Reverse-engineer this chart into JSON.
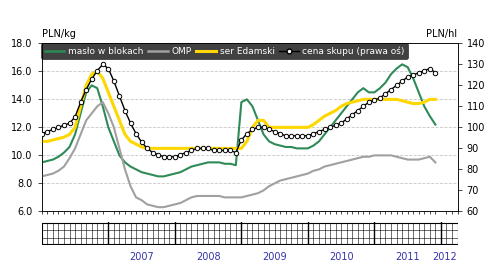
{
  "title_left": "PLN/kg",
  "title_right": "PLN/hl",
  "ylim_left": [
    6.0,
    18.0
  ],
  "ylim_right": [
    60,
    140
  ],
  "yticks_left": [
    6.0,
    8.0,
    10.0,
    12.0,
    14.0,
    16.0,
    18.0
  ],
  "yticks_right": [
    60,
    70,
    80,
    90,
    100,
    110,
    120,
    130,
    140
  ],
  "legend": [
    "masło w blokach",
    "OMP",
    "ser Edamski",
    "cena skupu (prawa oś)"
  ],
  "colors": [
    "#2e8b57",
    "#a0a0a0",
    "#ffd700",
    "#000000"
  ],
  "background_color": "#ffffff",
  "grid_color": "#c8c8c8",
  "maslo": [
    9.5,
    9.6,
    9.7,
    9.9,
    10.2,
    10.6,
    11.5,
    13.0,
    14.5,
    15.0,
    14.8,
    13.5,
    12.0,
    11.0,
    10.0,
    9.5,
    9.2,
    9.0,
    8.8,
    8.7,
    8.6,
    8.5,
    8.5,
    8.6,
    8.7,
    8.8,
    9.0,
    9.2,
    9.3,
    9.4,
    9.5,
    9.5,
    9.5,
    9.4,
    9.4,
    9.3,
    13.8,
    14.0,
    13.5,
    12.5,
    11.5,
    11.0,
    10.8,
    10.7,
    10.6,
    10.6,
    10.5,
    10.5,
    10.5,
    10.7,
    11.0,
    11.5,
    12.0,
    12.5,
    13.0,
    13.5,
    14.0,
    14.5,
    14.8,
    14.5,
    14.5,
    14.8,
    15.2,
    15.8,
    16.2,
    16.5,
    16.3,
    15.5,
    14.5,
    13.5,
    12.8,
    12.2
  ],
  "omp": [
    8.5,
    8.6,
    8.7,
    8.9,
    9.2,
    9.8,
    10.5,
    11.5,
    12.5,
    13.0,
    13.5,
    13.8,
    13.0,
    12.0,
    10.5,
    9.0,
    7.8,
    7.0,
    6.8,
    6.5,
    6.4,
    6.3,
    6.3,
    6.4,
    6.5,
    6.6,
    6.8,
    7.0,
    7.1,
    7.1,
    7.1,
    7.1,
    7.1,
    7.0,
    7.0,
    7.0,
    7.0,
    7.1,
    7.2,
    7.3,
    7.5,
    7.8,
    8.0,
    8.2,
    8.3,
    8.4,
    8.5,
    8.6,
    8.7,
    8.9,
    9.0,
    9.2,
    9.3,
    9.4,
    9.5,
    9.6,
    9.7,
    9.8,
    9.9,
    9.9,
    10.0,
    10.0,
    10.0,
    10.0,
    9.9,
    9.8,
    9.7,
    9.7,
    9.7,
    9.8,
    9.9,
    9.5
  ],
  "ser": [
    11.0,
    11.0,
    11.1,
    11.2,
    11.3,
    11.5,
    12.0,
    13.5,
    15.0,
    15.8,
    16.0,
    15.5,
    14.5,
    13.5,
    12.5,
    11.5,
    11.0,
    10.8,
    10.6,
    10.5,
    10.5,
    10.5,
    10.5,
    10.5,
    10.5,
    10.5,
    10.5,
    10.5,
    10.5,
    10.5,
    10.5,
    10.5,
    10.5,
    10.5,
    10.5,
    10.5,
    10.5,
    11.0,
    12.0,
    12.5,
    12.5,
    12.0,
    12.0,
    12.0,
    12.0,
    12.0,
    12.0,
    12.0,
    12.0,
    12.2,
    12.5,
    12.8,
    13.0,
    13.2,
    13.5,
    13.7,
    13.8,
    13.9,
    14.0,
    14.0,
    14.0,
    14.0,
    14.0,
    14.0,
    14.0,
    13.9,
    13.8,
    13.7,
    13.7,
    13.8,
    14.0,
    14.0
  ],
  "skupu": [
    97,
    98,
    99,
    100,
    101,
    102,
    105,
    112,
    118,
    123,
    127,
    130,
    128,
    122,
    115,
    108,
    102,
    97,
    93,
    90,
    88,
    87,
    86,
    86,
    86,
    87,
    88,
    89,
    90,
    90,
    90,
    89,
    89,
    89,
    89,
    88,
    94,
    97,
    99,
    100,
    100,
    99,
    98,
    97,
    96,
    96,
    96,
    96,
    96,
    97,
    98,
    99,
    100,
    101,
    102,
    104,
    106,
    108,
    110,
    112,
    113,
    114,
    116,
    118,
    120,
    122,
    124,
    125,
    126,
    127,
    128,
    126
  ],
  "xlim": [
    2006.0,
    2012.25
  ],
  "year_ticks": [
    2007,
    2008,
    2009,
    2010,
    2011,
    2012
  ],
  "n_points": 72,
  "start_year": 2006.0
}
